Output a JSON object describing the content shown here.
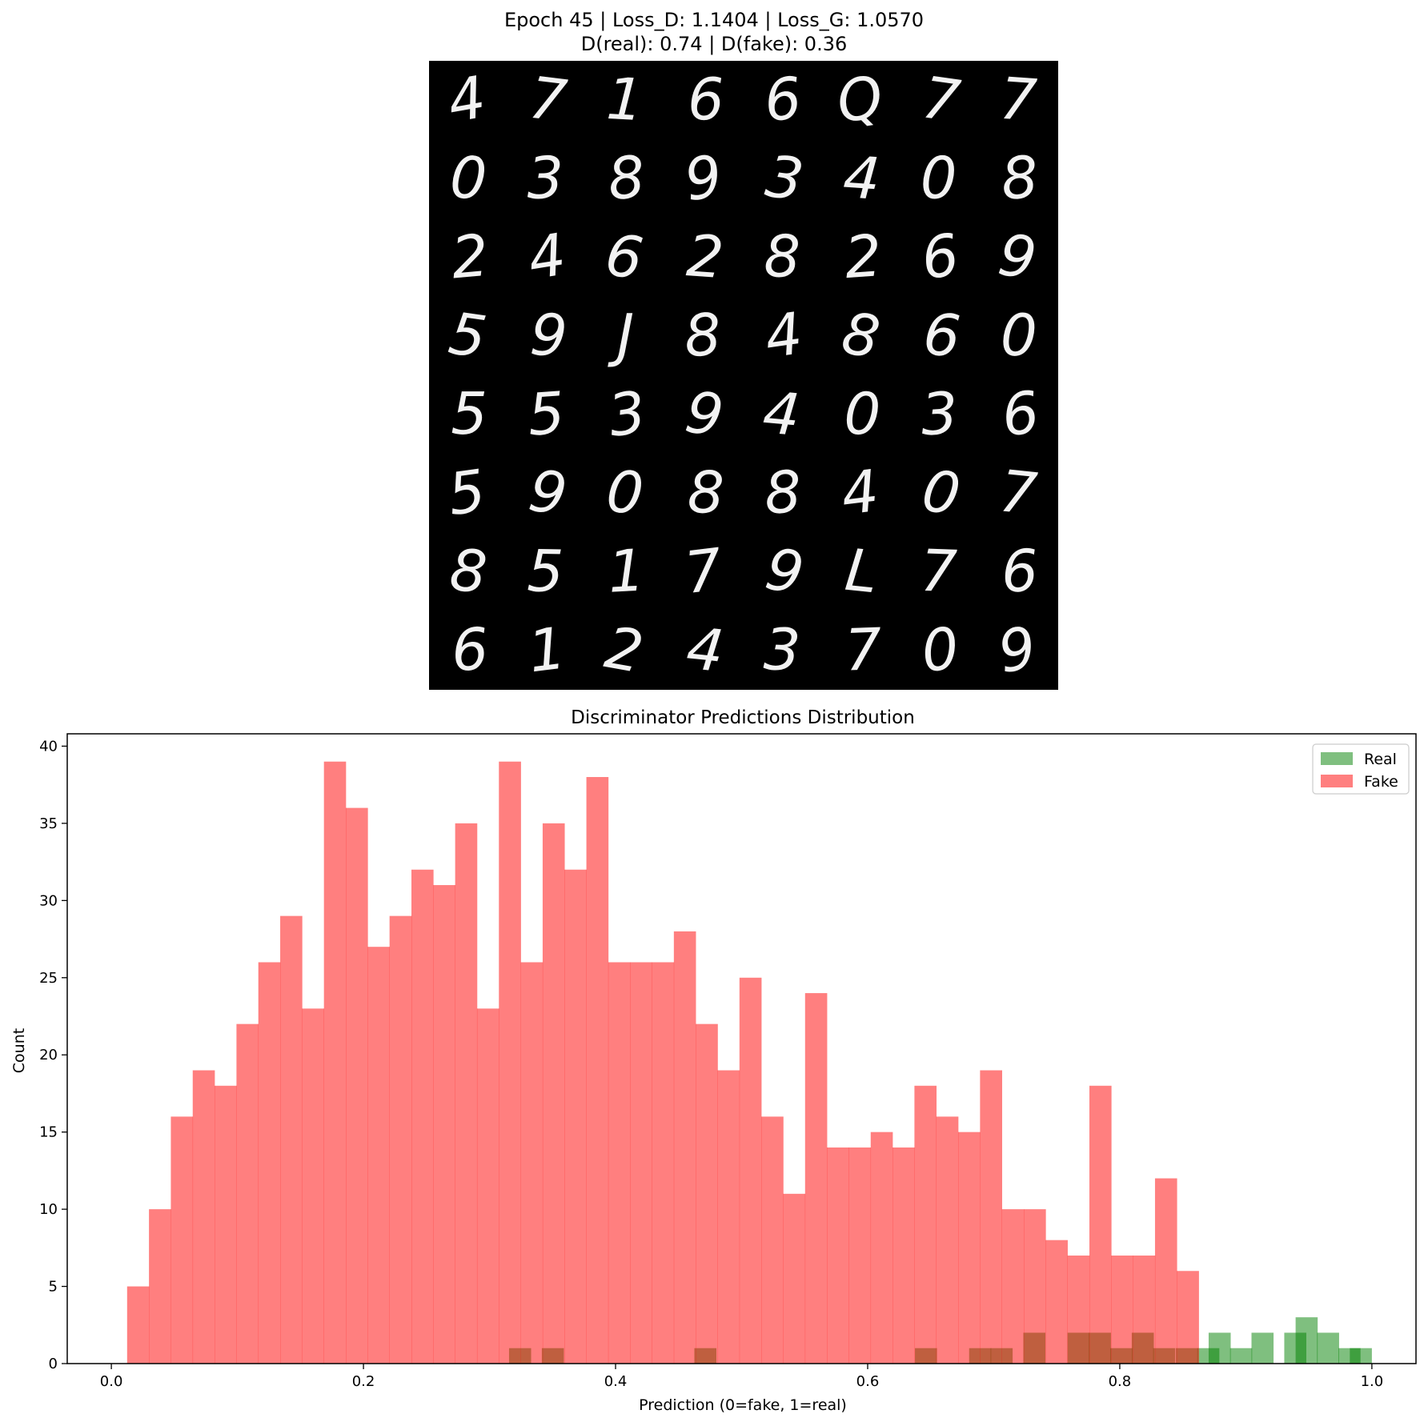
{
  "figure": {
    "title_line1": "Epoch 45 | Loss_D: 1.1404 | Loss_G: 1.0570",
    "title_line2": "D(real): 0.74 | D(fake): 0.36"
  },
  "samples_grid": {
    "rows": [
      [
        "4",
        "7",
        "1",
        "6",
        "6",
        "Q",
        "7",
        "7"
      ],
      [
        "0",
        "3",
        "8",
        "9",
        "3",
        "4",
        "0",
        "8"
      ],
      [
        "2",
        "4",
        "6",
        "2",
        "8",
        "2",
        "6",
        "9"
      ],
      [
        "5",
        "9",
        "J",
        "8",
        "4",
        "8",
        "6",
        "0"
      ],
      [
        "5",
        "5",
        "3",
        "9",
        "4",
        "0",
        "3",
        "6"
      ],
      [
        "5",
        "9",
        "0",
        "8",
        "8",
        "4",
        "0",
        "7"
      ],
      [
        "8",
        "5",
        "1",
        "7",
        "9",
        "L",
        "7",
        "6"
      ],
      [
        "6",
        "1",
        "2",
        "4",
        "3",
        "7",
        "0",
        "9"
      ]
    ]
  },
  "chart_data": {
    "type": "histogram",
    "title": "Discriminator Predictions Distribution",
    "xlabel": "Prediction (0=fake, 1=real)",
    "ylabel": "Count",
    "xlim": [
      -0.035,
      1.035
    ],
    "ylim": [
      0,
      40.8
    ],
    "xticks": [
      0.0,
      0.2,
      0.4,
      0.6,
      0.8,
      1.0
    ],
    "xtick_labels": [
      "0.0",
      "0.2",
      "0.4",
      "0.6",
      "0.8",
      "1.0"
    ],
    "yticks": [
      0,
      5,
      10,
      15,
      20,
      25,
      30,
      35,
      40
    ],
    "ytick_labels": [
      "0",
      "5",
      "10",
      "15",
      "20",
      "25",
      "30",
      "35",
      "40"
    ],
    "legend_position": "top-right",
    "series": [
      {
        "name": "Real",
        "color": "#008000",
        "alpha": 0.5,
        "bin_start": 0.0125,
        "bin_width": 0.01735,
        "values": [
          0,
          0,
          0,
          0,
          0,
          0,
          0,
          0,
          0,
          0,
          0,
          0,
          0,
          0,
          0,
          0,
          0,
          0,
          1,
          0,
          1,
          0,
          0,
          0,
          0,
          0,
          0,
          1,
          0,
          0,
          0,
          0,
          0,
          0,
          0,
          0,
          0,
          0,
          0,
          0,
          0,
          0,
          0,
          0,
          0,
          0,
          0,
          0,
          0,
          0,
          0,
          1,
          0,
          0,
          1,
          1,
          0,
          2,
          0,
          0,
          1,
          1,
          2,
          1,
          0,
          1,
          0,
          2,
          1,
          2,
          0,
          0,
          2,
          0,
          0,
          2,
          3,
          2,
          1,
          1
        ],
        "bins_override": {
          "comment_free": true
        }
      },
      {
        "name": "Fake",
        "color": "#ff0000",
        "alpha": 0.5,
        "bin_start": 0.0125,
        "bin_width": 0.01735,
        "values": [
          5,
          10,
          16,
          19,
          18,
          22,
          26,
          29,
          23,
          39,
          36,
          27,
          29,
          32,
          31,
          35,
          23,
          39,
          26,
          35,
          32,
          38,
          26,
          26,
          26,
          28,
          22,
          19,
          25,
          16,
          11,
          24,
          14,
          14,
          15,
          14,
          18,
          16,
          15,
          19,
          10,
          10,
          8,
          7,
          18,
          7,
          7,
          12,
          6
        ]
      }
    ],
    "real_bars": [
      {
        "x0": 0.3155,
        "count": 1
      },
      {
        "x0": 0.3415,
        "count": 1
      },
      {
        "x0": 0.4625,
        "count": 1
      },
      {
        "x0": 0.6375,
        "count": 1
      },
      {
        "x0": 0.6805,
        "count": 1
      },
      {
        "x0": 0.6975,
        "count": 1
      },
      {
        "x0": 0.7235,
        "count": 2
      },
      {
        "x0": 0.7585,
        "count": 2
      },
      {
        "x0": 0.7755,
        "count": 2
      },
      {
        "x0": 0.7925,
        "count": 1
      },
      {
        "x0": 0.8095,
        "count": 2
      },
      {
        "x0": 0.8265,
        "count": 1
      },
      {
        "x0": 0.8445,
        "count": 1
      },
      {
        "x0": 0.8615,
        "count": 1
      },
      {
        "x0": 0.8705,
        "count": 2
      },
      {
        "x0": 0.8875,
        "count": 1
      },
      {
        "x0": 0.9045,
        "count": 2
      },
      {
        "x0": 0.9215,
        "count": 0
      },
      {
        "x0": 0.9305,
        "count": 2
      },
      {
        "x0": 0.9395,
        "count": 3
      },
      {
        "x0": 0.9565,
        "count": 2
      },
      {
        "x0": 0.9735,
        "count": 1
      },
      {
        "x0": 0.9825,
        "count": 1
      }
    ]
  }
}
